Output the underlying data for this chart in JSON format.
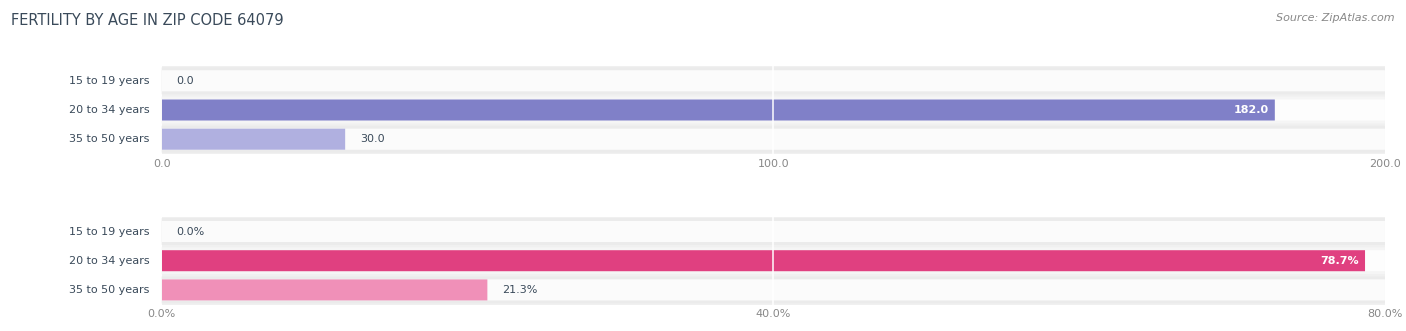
{
  "title": "FERTILITY BY AGE IN ZIP CODE 64079",
  "source": "Source: ZipAtlas.com",
  "top_chart": {
    "categories": [
      "15 to 19 years",
      "20 to 34 years",
      "35 to 50 years"
    ],
    "values": [
      0.0,
      182.0,
      30.0
    ],
    "xlim": [
      0,
      200
    ],
    "xticks": [
      0.0,
      100.0,
      200.0
    ],
    "xtick_labels": [
      "0.0",
      "100.0",
      "200.0"
    ],
    "bar_color_full": "#8080c8",
    "bar_color_light": "#b0b0e0",
    "value_labels": [
      "0.0",
      "182.0",
      "30.0"
    ],
    "max_val": 182.0
  },
  "bottom_chart": {
    "categories": [
      "15 to 19 years",
      "20 to 34 years",
      "35 to 50 years"
    ],
    "values": [
      0.0,
      78.7,
      21.3
    ],
    "xlim": [
      0,
      80
    ],
    "xticks": [
      0.0,
      40.0,
      80.0
    ],
    "xtick_labels": [
      "0.0%",
      "40.0%",
      "80.0%"
    ],
    "bar_color_full": "#e04080",
    "bar_color_light": "#f090b8",
    "value_labels": [
      "0.0%",
      "78.7%",
      "21.3%"
    ],
    "max_val": 78.7
  },
  "title_color": "#3a4a5a",
  "source_color": "#888888",
  "label_color": "#3a4a5a",
  "tick_color": "#888888",
  "row_bg_even": "#ebebeb",
  "row_bg_odd": "#f5f5f5"
}
